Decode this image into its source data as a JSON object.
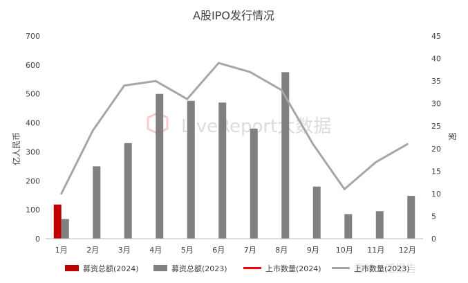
{
  "chart_data": {
    "type": "bar",
    "title": "A股IPO发行情况",
    "ylabel": "亿人民币",
    "y2label": "家",
    "ylim": [
      0,
      700
    ],
    "y2lim": [
      0,
      45
    ],
    "y_ticks": [
      "0",
      "100",
      "200",
      "300",
      "400",
      "500",
      "600",
      "700"
    ],
    "y2_ticks": [
      "0",
      "5",
      "10",
      "15",
      "20",
      "25",
      "30",
      "35",
      "40",
      "45"
    ],
    "categories": [
      "1月",
      "2月",
      "3月",
      "4月",
      "5月",
      "6月",
      "7月",
      "8月",
      "9月",
      "10月",
      "11月",
      "12月"
    ],
    "series": [
      {
        "name": "募资总额(2024)",
        "kind": "bar",
        "axis": "left",
        "color": "#c00000",
        "values": [
          118,
          null,
          null,
          null,
          null,
          null,
          null,
          null,
          null,
          null,
          null,
          null
        ]
      },
      {
        "name": "募资总额(2023)",
        "kind": "bar",
        "axis": "left",
        "color": "#808080",
        "values": [
          68,
          250,
          330,
          500,
          476,
          470,
          380,
          575,
          180,
          85,
          95,
          148
        ]
      },
      {
        "name": "上市数量(2024)",
        "kind": "line",
        "axis": "right",
        "color": "#ff0000",
        "values": [
          null,
          null,
          null,
          null,
          null,
          null,
          null,
          null,
          null,
          null,
          null,
          null
        ]
      },
      {
        "name": "上市数量(2023)",
        "kind": "line",
        "axis": "right",
        "color": "#a6a6a6",
        "values": [
          10,
          24,
          34,
          35,
          31,
          39,
          37,
          33,
          21,
          11,
          17,
          21
        ]
      }
    ],
    "grid": false,
    "legend": "bottom"
  },
  "watermark": {
    "brand": "LiveReport大数据",
    "bottom": "雪球：活报告"
  },
  "colors": {
    "text": "#404040",
    "axis": "#bfbfbf"
  }
}
